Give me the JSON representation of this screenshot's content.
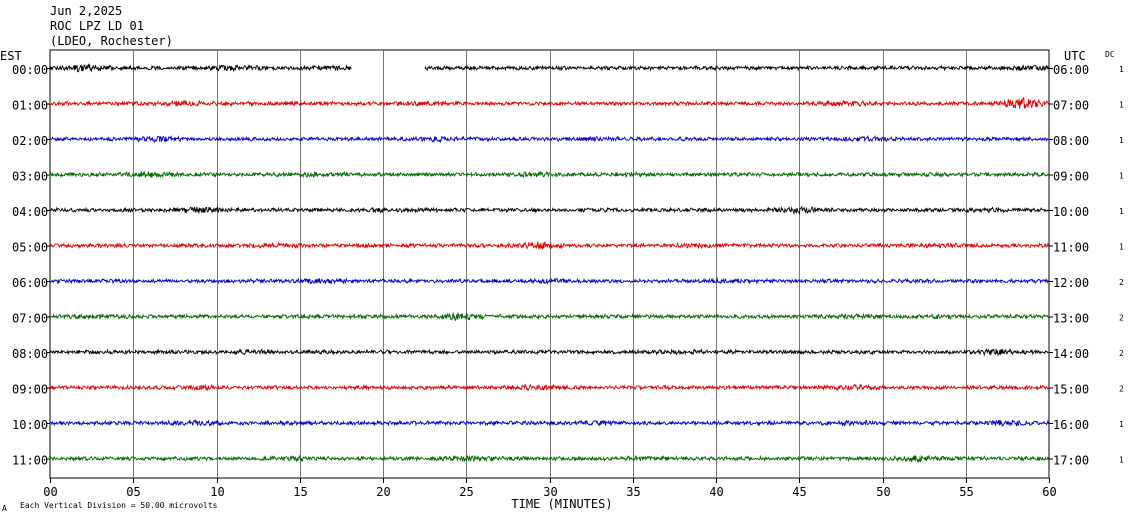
{
  "header": {
    "date": "Jun 2,2025",
    "station": "ROC LPZ LD 01",
    "location": "(LDEO, Rochester)"
  },
  "labels": {
    "left_tz": "EST",
    "right_tz": "UTC",
    "dc": "DC",
    "x_title": "TIME (MINUTES)",
    "scale_note": "Each Vertical Division =   50.00 microvolts",
    "corner_mark": "A"
  },
  "chart_data": {
    "type": "line",
    "title": "",
    "xlabel": "TIME (MINUTES)",
    "ylabel": "",
    "xlim": [
      0,
      60
    ],
    "x_ticks": [
      "00",
      "05",
      "10",
      "15",
      "20",
      "25",
      "30",
      "35",
      "40",
      "45",
      "50",
      "55",
      "60"
    ],
    "grid": true,
    "trace_colors": [
      "#000000",
      "#e00000",
      "#0000cc",
      "#006600"
    ],
    "rows": [
      {
        "est": "00:00",
        "utc": "06:00",
        "dc": "1",
        "color": "#000000",
        "gaps": [
          [
            18.1,
            22.5
          ]
        ],
        "bursts": [
          {
            "t": 2.0,
            "a": 1.8
          },
          {
            "t": 11.0,
            "a": 1.5
          },
          {
            "t": 16.5,
            "a": 1.4
          },
          {
            "t": 59.0,
            "a": 1.6
          }
        ]
      },
      {
        "est": "01:00",
        "utc": "07:00",
        "dc": "1",
        "color": "#e00000",
        "gaps": [],
        "bursts": [
          {
            "t": 8.0,
            "a": 1.5
          },
          {
            "t": 22.0,
            "a": 1.4
          },
          {
            "t": 47.5,
            "a": 1.6
          },
          {
            "t": 58.5,
            "a": 2.6
          }
        ]
      },
      {
        "est": "02:00",
        "utc": "08:00",
        "dc": "1",
        "color": "#0000cc",
        "gaps": [],
        "bursts": [
          {
            "t": 6.5,
            "a": 1.5
          },
          {
            "t": 23.0,
            "a": 1.4
          },
          {
            "t": 32.5,
            "a": 1.3
          },
          {
            "t": 49.0,
            "a": 1.4
          }
        ]
      },
      {
        "est": "03:00",
        "utc": "09:00",
        "dc": "1",
        "color": "#006600",
        "gaps": [],
        "bursts": [
          {
            "t": 6.0,
            "a": 1.6
          },
          {
            "t": 15.5,
            "a": 1.4
          },
          {
            "t": 29.0,
            "a": 1.4
          },
          {
            "t": 35.0,
            "a": 1.3
          }
        ]
      },
      {
        "est": "04:00",
        "utc": "10:00",
        "dc": "1",
        "color": "#000000",
        "gaps": [],
        "bursts": [
          {
            "t": 9.0,
            "a": 1.7
          },
          {
            "t": 19.8,
            "a": 1.3
          },
          {
            "t": 45.0,
            "a": 1.8
          },
          {
            "t": 56.5,
            "a": 1.3
          }
        ]
      },
      {
        "est": "05:00",
        "utc": "11:00",
        "dc": "1",
        "color": "#e00000",
        "gaps": [],
        "bursts": [
          {
            "t": 13.5,
            "a": 1.4
          },
          {
            "t": 29.5,
            "a": 2.0
          },
          {
            "t": 39.0,
            "a": 1.3
          },
          {
            "t": 53.0,
            "a": 1.4
          }
        ]
      },
      {
        "est": "06:00",
        "utc": "12:00",
        "dc": "2",
        "color": "#0000cc",
        "gaps": [],
        "bursts": [
          {
            "t": 16.5,
            "a": 1.4
          },
          {
            "t": 30.0,
            "a": 1.3
          },
          {
            "t": 41.0,
            "a": 1.2
          }
        ]
      },
      {
        "est": "07:00",
        "utc": "13:00",
        "dc": "2",
        "color": "#006600",
        "gaps": [],
        "bursts": [
          {
            "t": 3.0,
            "a": 1.3
          },
          {
            "t": 24.5,
            "a": 1.8
          },
          {
            "t": 48.5,
            "a": 1.4
          },
          {
            "t": 53.5,
            "a": 1.3
          }
        ]
      },
      {
        "est": "08:00",
        "utc": "14:00",
        "dc": "2",
        "color": "#000000",
        "gaps": [],
        "bursts": [
          {
            "t": 12.5,
            "a": 1.3
          },
          {
            "t": 38.0,
            "a": 1.3
          },
          {
            "t": 57.0,
            "a": 1.6
          }
        ]
      },
      {
        "est": "09:00",
        "utc": "15:00",
        "dc": "2",
        "color": "#e00000",
        "gaps": [],
        "bursts": [
          {
            "t": 9.0,
            "a": 1.4
          },
          {
            "t": 29.0,
            "a": 1.5
          },
          {
            "t": 48.0,
            "a": 1.4
          }
        ]
      },
      {
        "est": "10:00",
        "utc": "16:00",
        "dc": "1",
        "color": "#0000cc",
        "gaps": [],
        "bursts": [
          {
            "t": 9.0,
            "a": 1.6
          },
          {
            "t": 33.0,
            "a": 1.3
          },
          {
            "t": 48.0,
            "a": 1.5
          },
          {
            "t": 57.5,
            "a": 1.6
          }
        ]
      },
      {
        "est": "11:00",
        "utc": "17:00",
        "dc": "1",
        "color": "#006600",
        "gaps": [],
        "bursts": [
          {
            "t": 14.5,
            "a": 1.4
          },
          {
            "t": 25.0,
            "a": 1.5
          },
          {
            "t": 52.0,
            "a": 1.6
          },
          {
            "t": 36.0,
            "a": 1.3
          }
        ]
      }
    ]
  }
}
